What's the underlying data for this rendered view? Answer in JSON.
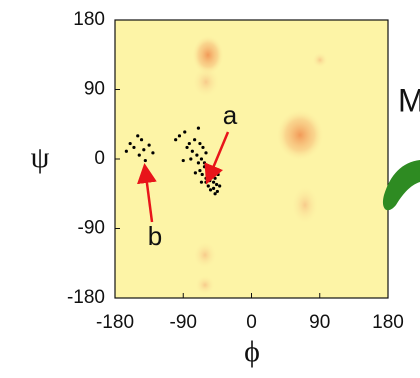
{
  "chart_data": {
    "type": "scatter",
    "x_label": "ϕ",
    "y_label": "ψ",
    "xlim": [
      -180,
      180
    ],
    "ylim": [
      -180,
      180
    ],
    "xticks": [
      -180,
      -90,
      0,
      90,
      180
    ],
    "yticks": [
      -180,
      -90,
      0,
      90,
      180
    ],
    "color": "#000000",
    "background": "#fdf4a6",
    "x": [
      -95,
      -88,
      -82,
      -78,
      -75,
      -72,
      -70,
      -68,
      -66,
      -65,
      -64,
      -62,
      -60,
      -60,
      -58,
      -57,
      -56,
      -55,
      -54,
      -52,
      -50,
      -50,
      -48,
      -46,
      -45,
      -44,
      -42,
      -70,
      -80,
      -85,
      -62,
      -58,
      -66,
      -74,
      -54,
      -48,
      -60,
      -68,
      -100,
      -90,
      -165,
      -160,
      -155,
      -150,
      -148,
      -145,
      -142,
      -140,
      -135,
      -130
    ],
    "values": [
      30,
      35,
      20,
      10,
      25,
      5,
      -5,
      -15,
      0,
      -20,
      15,
      -10,
      -25,
      -30,
      -20,
      -35,
      -15,
      -28,
      -40,
      -22,
      -30,
      -38,
      -25,
      -33,
      -42,
      -20,
      -35,
      40,
      0,
      15,
      -5,
      -12,
      -30,
      -18,
      -10,
      -45,
      8,
      20,
      25,
      -2,
      10,
      20,
      15,
      30,
      5,
      25,
      12,
      -2,
      18,
      8
    ],
    "annotations": [
      "a",
      "b",
      "M"
    ]
  }
}
